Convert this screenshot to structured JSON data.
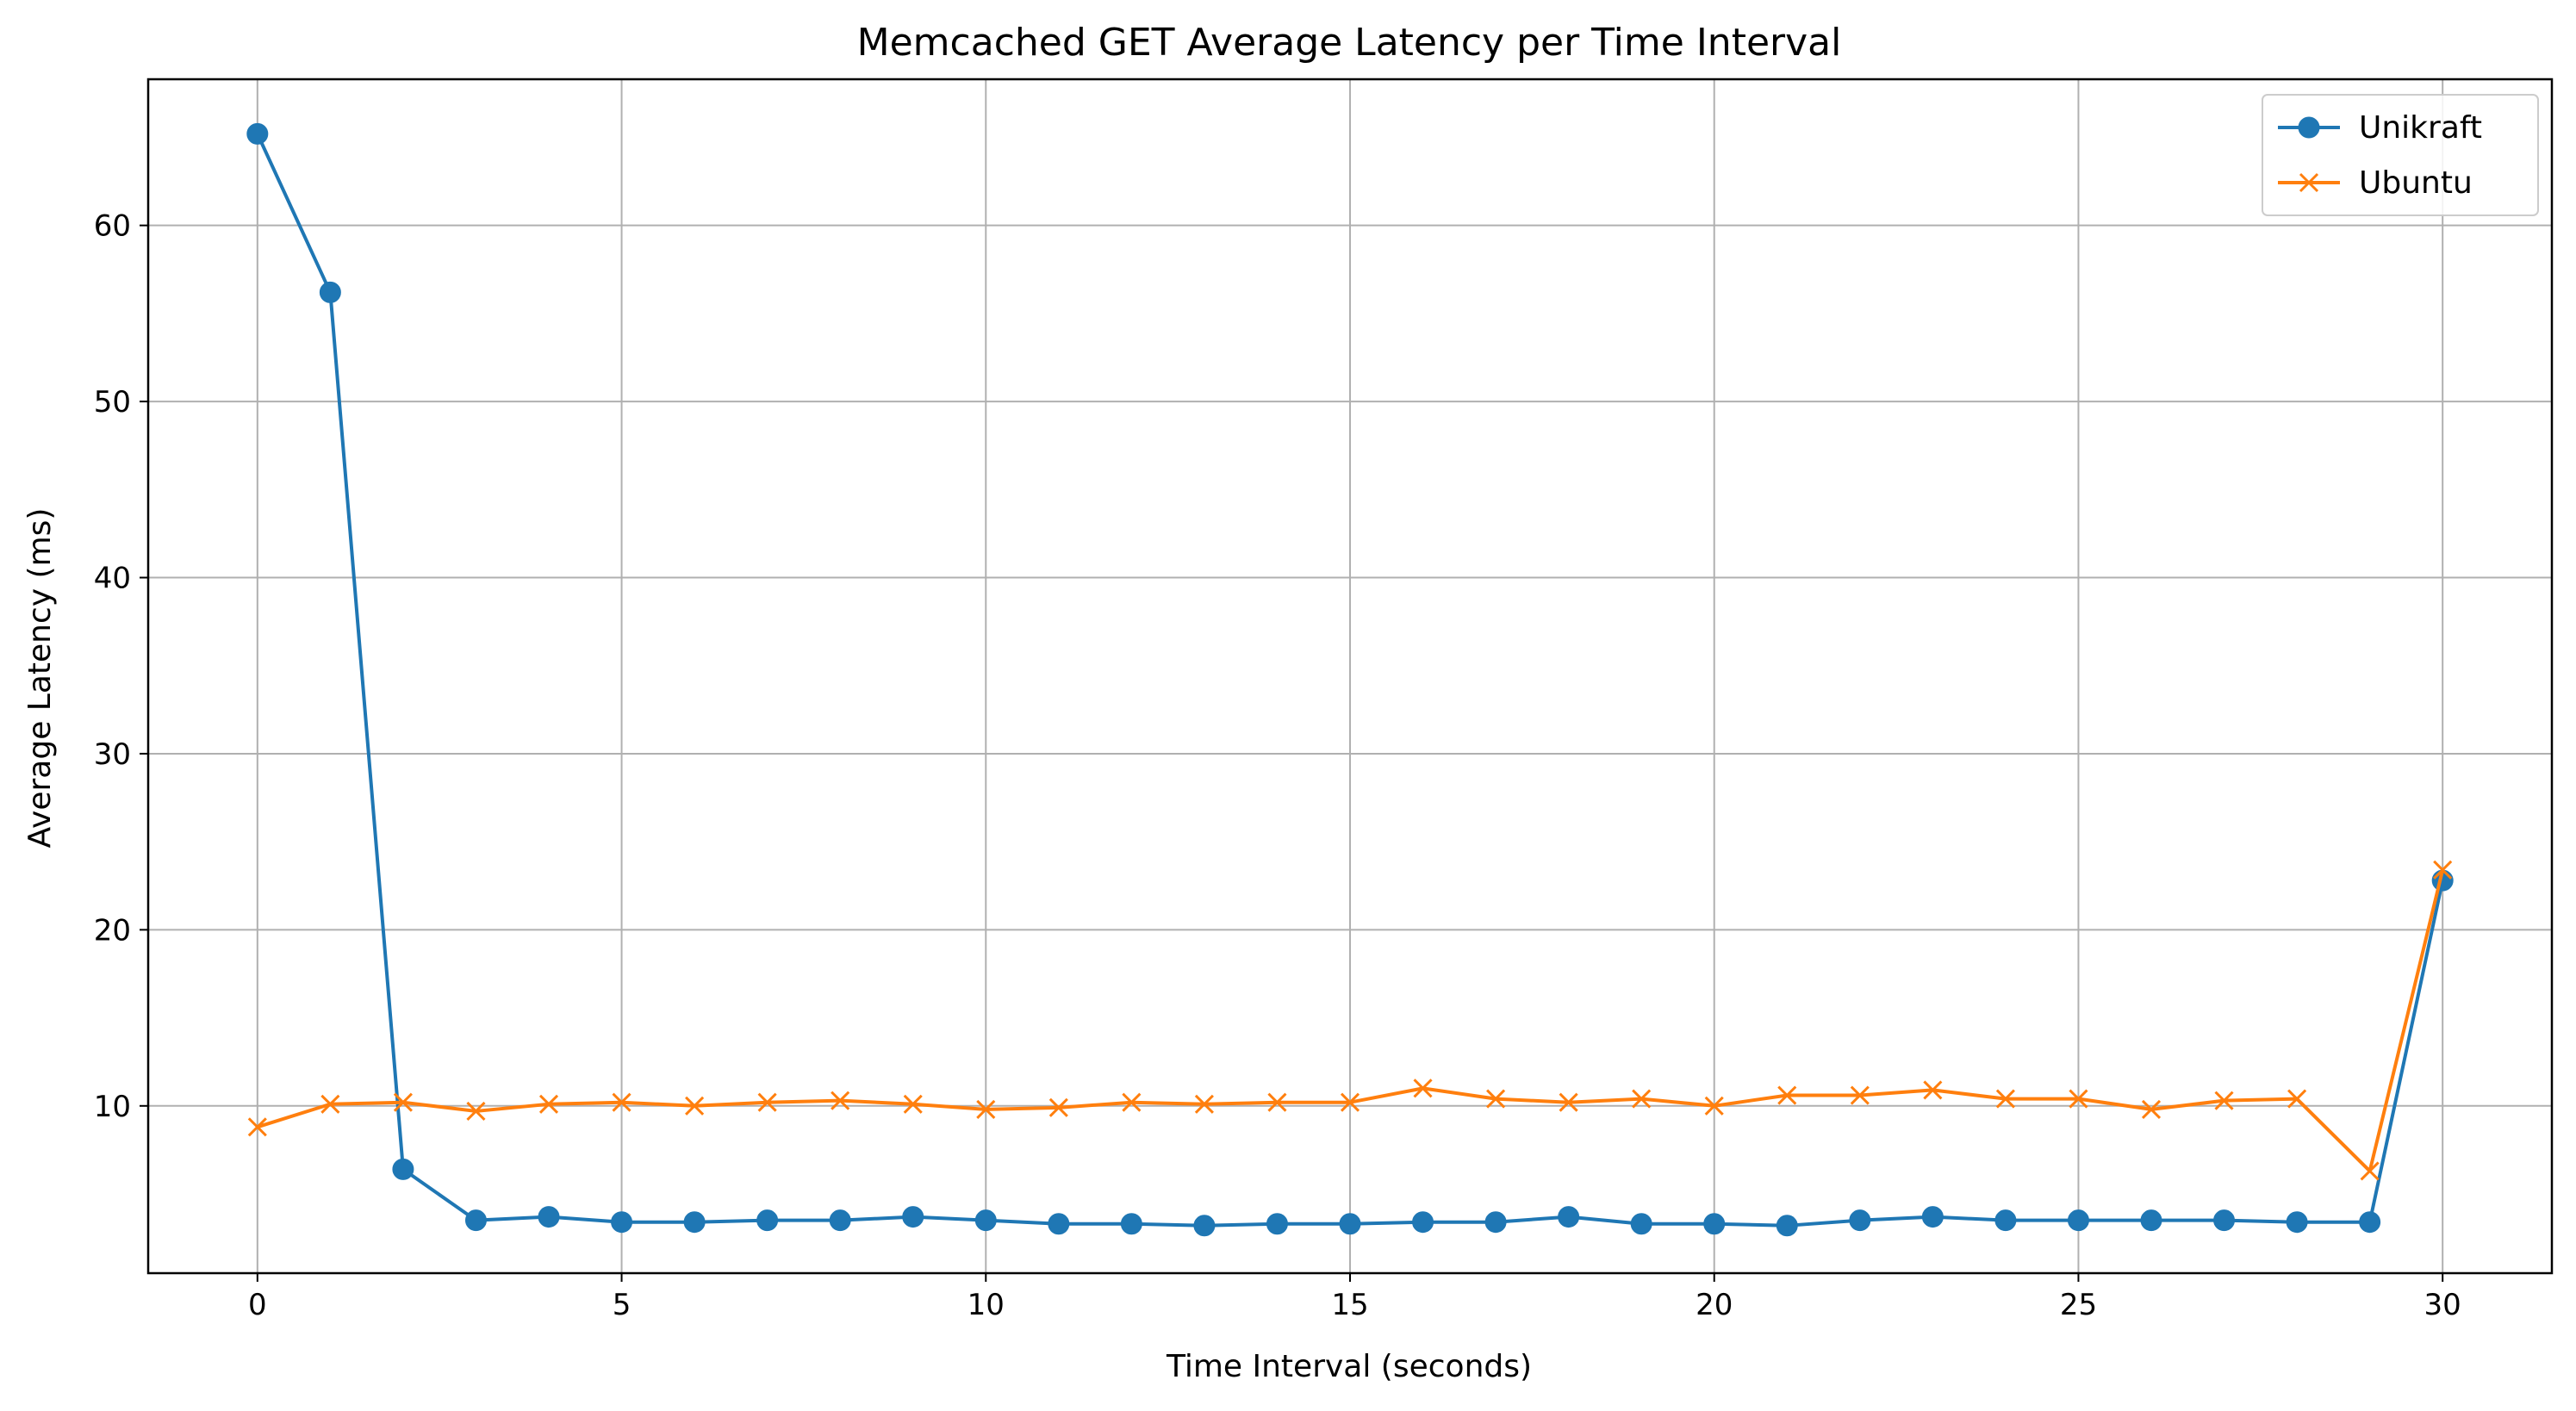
{
  "chart_data": {
    "type": "line",
    "title": "Memcached GET Average Latency per Time Interval",
    "xlabel": "Time Interval (seconds)",
    "ylabel": "Average Latency (ms)",
    "xlim": [
      -1.5,
      31.5
    ],
    "ylim": [
      0.5,
      68.3
    ],
    "x_ticks": [
      0,
      5,
      10,
      15,
      20,
      25,
      30
    ],
    "y_ticks": [
      10,
      20,
      30,
      40,
      50,
      60
    ],
    "grid": true,
    "legend_position": "top-right",
    "x": [
      0,
      1,
      2,
      3,
      4,
      5,
      6,
      7,
      8,
      9,
      10,
      11,
      12,
      13,
      14,
      15,
      16,
      17,
      18,
      19,
      20,
      21,
      22,
      23,
      24,
      25,
      26,
      27,
      28,
      29,
      30
    ],
    "series": [
      {
        "name": "Unikraft",
        "color": "#1f77b4",
        "marker": "circle",
        "values": [
          65.2,
          56.2,
          6.4,
          3.5,
          3.7,
          3.4,
          3.4,
          3.5,
          3.5,
          3.7,
          3.5,
          3.3,
          3.3,
          3.2,
          3.3,
          3.3,
          3.4,
          3.4,
          3.7,
          3.3,
          3.3,
          3.2,
          3.5,
          3.7,
          3.5,
          3.5,
          3.5,
          3.5,
          3.4,
          3.4,
          22.8
        ]
      },
      {
        "name": "Ubuntu",
        "color": "#ff7f0e",
        "marker": "x",
        "values": [
          8.8,
          10.1,
          10.2,
          9.7,
          10.1,
          10.2,
          10.0,
          10.2,
          10.3,
          10.1,
          9.8,
          9.9,
          10.2,
          10.1,
          10.2,
          10.2,
          11.0,
          10.4,
          10.2,
          10.4,
          10.0,
          10.6,
          10.6,
          10.9,
          10.4,
          10.4,
          9.8,
          10.3,
          10.4,
          6.3,
          23.4
        ]
      }
    ]
  }
}
